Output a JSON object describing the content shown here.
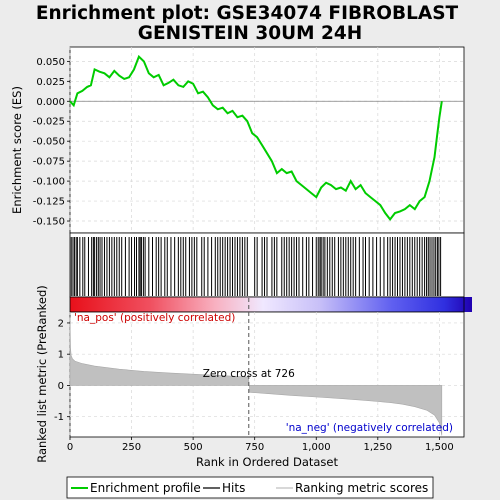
{
  "chart_data": {
    "type": "line",
    "title_line1": "Enrichment plot: GSE34074 FIBROBLAST",
    "title_line2": "GENISTEIN 30UM 24H",
    "enrichment_panel": {
      "ylabel": "Enrichment score (ES)",
      "ylim": [
        -0.165,
        0.068
      ],
      "yticks": [
        0.05,
        0.025,
        0.0,
        -0.025,
        -0.05,
        -0.075,
        -0.1,
        -0.125,
        -0.15
      ],
      "ytick_labels": [
        "0.050",
        "0.025",
        "0.000",
        "-0.025",
        "-0.050",
        "-0.075",
        "-0.100",
        "-0.125",
        "-0.150"
      ],
      "line_color": "#00cc00",
      "profile_x": [
        0,
        15,
        30,
        50,
        70,
        85,
        100,
        120,
        140,
        160,
        180,
        200,
        220,
        240,
        260,
        280,
        300,
        320,
        340,
        360,
        380,
        400,
        420,
        440,
        460,
        480,
        500,
        520,
        540,
        560,
        580,
        600,
        620,
        640,
        660,
        680,
        700,
        720,
        740,
        760,
        780,
        800,
        820,
        840,
        860,
        880,
        900,
        920,
        940,
        960,
        980,
        1000,
        1020,
        1040,
        1060,
        1080,
        1100,
        1120,
        1140,
        1160,
        1180,
        1200,
        1220,
        1240,
        1260,
        1280,
        1300,
        1320,
        1340,
        1360,
        1380,
        1400,
        1420,
        1440,
        1460,
        1470,
        1480,
        1490,
        1500,
        1510
      ],
      "profile_y": [
        0.0,
        -0.005,
        0.01,
        0.013,
        0.018,
        0.02,
        0.04,
        0.037,
        0.035,
        0.03,
        0.038,
        0.032,
        0.028,
        0.03,
        0.04,
        0.056,
        0.05,
        0.035,
        0.03,
        0.033,
        0.02,
        0.023,
        0.027,
        0.02,
        0.018,
        0.025,
        0.022,
        0.01,
        0.012,
        0.005,
        -0.005,
        -0.01,
        -0.008,
        -0.015,
        -0.012,
        -0.02,
        -0.018,
        -0.025,
        -0.04,
        -0.045,
        -0.055,
        -0.065,
        -0.075,
        -0.09,
        -0.085,
        -0.09,
        -0.088,
        -0.1,
        -0.105,
        -0.11,
        -0.115,
        -0.12,
        -0.108,
        -0.102,
        -0.105,
        -0.11,
        -0.108,
        -0.112,
        -0.1,
        -0.11,
        -0.105,
        -0.115,
        -0.12,
        -0.125,
        -0.13,
        -0.14,
        -0.148,
        -0.14,
        -0.138,
        -0.135,
        -0.13,
        -0.135,
        -0.125,
        -0.12,
        -0.1,
        -0.085,
        -0.07,
        -0.045,
        -0.02,
        0.0
      ]
    },
    "ranked_panel": {
      "ylabel": "Ranked list metric (PreRanked)",
      "ylim": [
        -1.65,
        2.35
      ],
      "yticks": [
        2,
        1,
        0,
        -1
      ],
      "ytick_labels": [
        "2",
        "1",
        "0",
        "-1"
      ],
      "xlabel": "Rank in Ordered Dataset",
      "xlim": [
        0,
        1600
      ],
      "xticks": [
        0,
        250,
        500,
        750,
        1000,
        1250,
        1500
      ],
      "xtick_labels": [
        "0",
        "250",
        "500",
        "750",
        "1,000",
        "1,250",
        "1,500"
      ],
      "metric_x": [
        0,
        2,
        5,
        10,
        20,
        50,
        100,
        200,
        300,
        400,
        500,
        600,
        700,
        725,
        730,
        800,
        900,
        1000,
        1100,
        1200,
        1300,
        1350,
        1400,
        1450,
        1480,
        1500,
        1510
      ],
      "metric_y": [
        2.2,
        1.2,
        0.95,
        0.85,
        0.78,
        0.7,
        0.62,
        0.52,
        0.45,
        0.4,
        0.36,
        0.32,
        0.28,
        0.27,
        -0.22,
        -0.26,
        -0.32,
        -0.37,
        -0.42,
        -0.48,
        -0.55,
        -0.6,
        -0.68,
        -0.8,
        -0.95,
        -1.2,
        -1.6
      ],
      "fill_color": "#c0c0c0",
      "zero_cross_rank": 726,
      "zero_cross_label": "Zero cross at 726",
      "pos_label": "'na_pos' (positively correlated)",
      "neg_label": "'na_neg' (negatively correlated)",
      "pos_color": "#cc0000",
      "neg_color": "#0000cc"
    },
    "hits": [
      5,
      12,
      18,
      25,
      30,
      40,
      52,
      60,
      75,
      88,
      95,
      100,
      108,
      115,
      122,
      130,
      140,
      150,
      160,
      170,
      180,
      190,
      200,
      210,
      225,
      240,
      250,
      262,
      270,
      280,
      285,
      290,
      298,
      305,
      320,
      335,
      350,
      360,
      370,
      385,
      395,
      410,
      425,
      440,
      450,
      460,
      470,
      485,
      495,
      505,
      515,
      535,
      545,
      560,
      575,
      590,
      600,
      610,
      620,
      630,
      640,
      650,
      660,
      670,
      680,
      690,
      700,
      710,
      720,
      750,
      760,
      780,
      790,
      800,
      820,
      830,
      840,
      860,
      870,
      880,
      890,
      900,
      910,
      920,
      930,
      945,
      960,
      970,
      985,
      1000,
      1008,
      1015,
      1020,
      1028,
      1035,
      1045,
      1055,
      1065,
      1075,
      1090,
      1100,
      1110,
      1120,
      1130,
      1140,
      1150,
      1160,
      1175,
      1190,
      1200,
      1215,
      1230,
      1245,
      1260,
      1275,
      1290,
      1300,
      1310,
      1320,
      1330,
      1340,
      1350,
      1360,
      1370,
      1380,
      1390,
      1400,
      1410,
      1420,
      1430,
      1440,
      1448,
      1455,
      1462,
      1470,
      1478,
      1485,
      1492,
      1498,
      1505
    ],
    "legend": [
      {
        "label": "Enrichment profile",
        "color": "#00cc00"
      },
      {
        "label": "Hits",
        "color": "#000000"
      },
      {
        "label": "Ranking metric scores",
        "color": "#c0c0c0"
      }
    ]
  }
}
